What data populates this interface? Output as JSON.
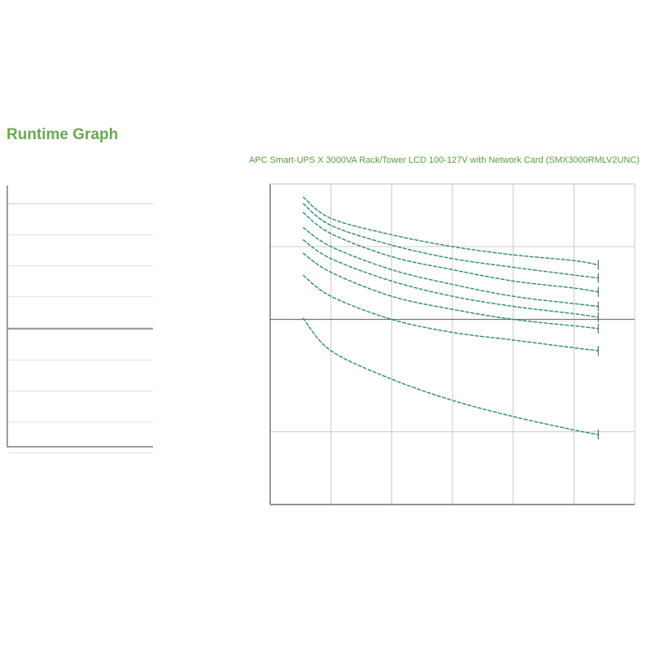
{
  "header": {
    "title": "Runtime Graph",
    "product": "APC Smart-UPS X 3000VA Rack/Tower LCD 100-127V with Network Card (SMX3000RMLV2UNC)"
  },
  "legend": {
    "headers": [
      "",
      ""
    ],
    "rows": [
      {
        "col1": "",
        "col2": ""
      },
      {
        "col1": "",
        "col2": ""
      },
      {
        "col1": "",
        "col2": ""
      },
      {
        "col1": "",
        "col2": ""
      },
      {
        "col1": "",
        "col2": ""
      },
      {
        "col1": "",
        "col2": ""
      },
      {
        "col1": "",
        "col2": ""
      },
      {
        "col1": "",
        "col2": ""
      }
    ]
  },
  "colors": {
    "title": "#6aa84f",
    "curve": "#2e8b6a",
    "grid": "#c8c8c8",
    "hline": "#777777"
  },
  "chart_data": {
    "type": "line",
    "title": "",
    "xlabel": "",
    "ylabel": "",
    "x_scale": "linear",
    "y_scale": "log",
    "xlim": [
      0,
      3000
    ],
    "ylim": [
      1,
      1200
    ],
    "x_ticks": [
      {
        "value": 0,
        "label": ""
      },
      {
        "value": 500,
        "label": ""
      },
      {
        "value": 1000,
        "label": ""
      },
      {
        "value": 1500,
        "label": ""
      },
      {
        "value": 2000,
        "label": ""
      },
      {
        "value": 2500,
        "label": ""
      },
      {
        "value": 3000,
        "label": ""
      }
    ],
    "y_ticks": [
      {
        "value": 1000,
        "label": ""
      },
      {
        "value": 700,
        "label": ""
      },
      {
        "value": 420,
        "label": ""
      },
      {
        "value": 300,
        "label": ""
      },
      {
        "value": 200,
        "label": ""
      },
      {
        "value": 120,
        "label": ""
      },
      {
        "value": 60,
        "label": ""
      },
      {
        "value": 50,
        "label": ""
      },
      {
        "value": 45,
        "label": ""
      },
      {
        "value": 30,
        "label": ""
      },
      {
        "value": 15,
        "label": ""
      },
      {
        "value": 10,
        "label": ""
      },
      {
        "value": 8,
        "label": ""
      },
      {
        "value": 5,
        "label": ""
      }
    ],
    "reference_line_y": 60,
    "grid": true,
    "series": [
      {
        "x": [
          270,
          500,
          1000,
          1500,
          2000,
          2500,
          2700
        ],
        "y": [
          900,
          560,
          390,
          300,
          250,
          220,
          200
        ]
      },
      {
        "x": [
          270,
          500,
          1000,
          1500,
          2000,
          2500,
          2700
        ],
        "y": [
          780,
          480,
          310,
          230,
          190,
          160,
          150
        ]
      },
      {
        "x": [
          270,
          500,
          1000,
          1500,
          2000,
          2500,
          2700
        ],
        "y": [
          640,
          400,
          240,
          180,
          140,
          120,
          110
        ]
      },
      {
        "x": [
          270,
          500,
          1000,
          1500,
          2000,
          2500,
          2700
        ],
        "y": [
          460,
          300,
          180,
          130,
          100,
          85,
          80
        ]
      },
      {
        "x": [
          270,
          500,
          1000,
          1500,
          2000,
          2500,
          2700
        ],
        "y": [
          350,
          230,
          140,
          100,
          80,
          68,
          63
        ]
      },
      {
        "x": [
          270,
          500,
          1000,
          1500,
          2000,
          2500,
          2700
        ],
        "y": [
          260,
          170,
          100,
          75,
          60,
          52,
          49
        ]
      },
      {
        "x": [
          270,
          500,
          1000,
          1500,
          2000,
          2500,
          2700
        ],
        "y": [
          160,
          100,
          60,
          45,
          38,
          32,
          30
        ]
      },
      {
        "x": [
          270,
          500,
          1000,
          1500,
          2000,
          2500,
          2700
        ],
        "y": [
          62,
          30,
          16,
          10,
          7,
          5.2,
          4.7
        ]
      }
    ]
  }
}
